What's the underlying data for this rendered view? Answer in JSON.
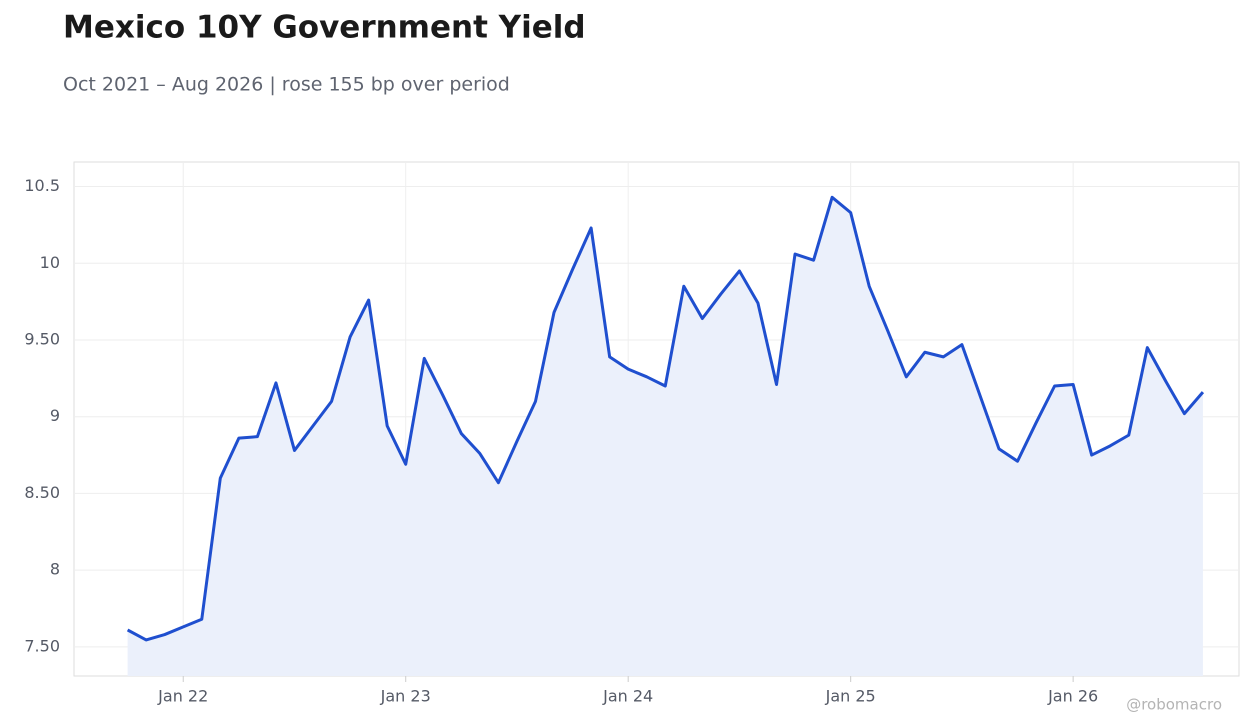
{
  "chart_data": {
    "type": "line",
    "title": "Mexico 10Y Government Yield",
    "subtitle": "Oct 2021 – Aug 2026 | rose 155 bp over period",
    "watermark": "@robomacro",
    "x": [
      "2021-10",
      "2021-11",
      "2021-12",
      "2022-01",
      "2022-02",
      "2022-03",
      "2022-04",
      "2022-05",
      "2022-06",
      "2022-07",
      "2022-08",
      "2022-09",
      "2022-10",
      "2022-11",
      "2022-12",
      "2023-01",
      "2023-02",
      "2023-03",
      "2023-04",
      "2023-05",
      "2023-06",
      "2023-07",
      "2023-08",
      "2023-09",
      "2023-10",
      "2023-11",
      "2023-12",
      "2024-01",
      "2024-02",
      "2024-03",
      "2024-04",
      "2024-05",
      "2024-06",
      "2024-07",
      "2024-08",
      "2024-09",
      "2024-10",
      "2024-11",
      "2024-12",
      "2025-01",
      "2025-02",
      "2025-03",
      "2025-04",
      "2025-05",
      "2025-06",
      "2025-07",
      "2025-08",
      "2025-09",
      "2025-10",
      "2025-11",
      "2025-12",
      "2026-01",
      "2026-02",
      "2026-03",
      "2026-04",
      "2026-05",
      "2026-06",
      "2026-07",
      "2026-08"
    ],
    "series": [
      {
        "name": "Mexico 10Y",
        "color": "#1f4fcf",
        "area_color": "#ebf0fb",
        "values": [
          7.61,
          7.545,
          7.58,
          7.63,
          7.68,
          8.6,
          8.86,
          8.87,
          9.22,
          8.78,
          8.94,
          9.1,
          9.52,
          9.76,
          8.94,
          8.69,
          9.38,
          9.14,
          8.89,
          8.76,
          8.57,
          8.84,
          9.1,
          9.68,
          9.96,
          10.23,
          9.39,
          9.31,
          9.26,
          9.2,
          9.85,
          9.64,
          9.8,
          9.95,
          9.74,
          9.21,
          10.06,
          10.02,
          10.43,
          10.33,
          9.85,
          9.56,
          9.26,
          9.42,
          9.39,
          9.47,
          9.13,
          8.79,
          8.71,
          8.96,
          9.2,
          9.21,
          8.75,
          8.81,
          8.88,
          9.45,
          9.23,
          9.02,
          9.16
        ]
      }
    ],
    "xlim": [
      "2021-07",
      "2026-10"
    ],
    "xticks": [
      {
        "value": "2022-01",
        "label": "Jan 22"
      },
      {
        "value": "2023-01",
        "label": "Jan 23"
      },
      {
        "value": "2024-01",
        "label": "Jan 24"
      },
      {
        "value": "2025-01",
        "label": "Jan 25"
      },
      {
        "value": "2026-01",
        "label": "Jan 26"
      }
    ],
    "ylim": [
      7.31,
      10.66
    ],
    "yticks": [
      {
        "value": 7.5,
        "label": "7.50"
      },
      8,
      {
        "value": 8.5,
        "label": "8.50"
      },
      9,
      {
        "value": 9.5,
        "label": "9.50"
      },
      10,
      10.5
    ],
    "grid": true
  }
}
